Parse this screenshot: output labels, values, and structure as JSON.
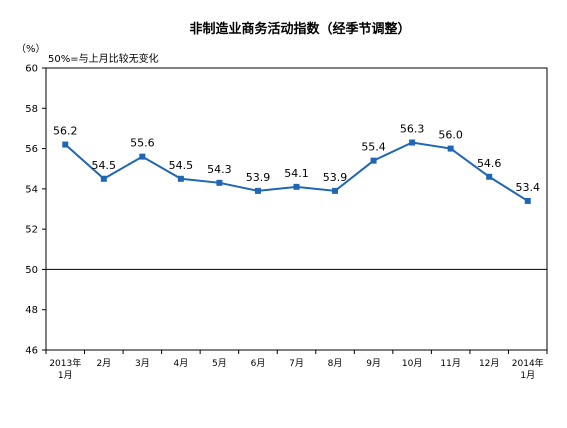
{
  "chart_data": {
    "type": "line",
    "title": "非制造业商务活动指数（经季节调整）",
    "unit": "（%）",
    "annotation": "50%=与上月比较无变化",
    "categories": [
      [
        "2013年",
        "1月"
      ],
      [
        "2月"
      ],
      [
        "3月"
      ],
      [
        "4月"
      ],
      [
        "5月"
      ],
      [
        "6月"
      ],
      [
        "7月"
      ],
      [
        "8月"
      ],
      [
        "9月"
      ],
      [
        "10月"
      ],
      [
        "11月"
      ],
      [
        "12月"
      ],
      [
        "2014年",
        "1月"
      ]
    ],
    "series": [
      {
        "values": [
          56.2,
          54.5,
          55.6,
          54.5,
          54.3,
          53.9,
          54.1,
          53.9,
          55.4,
          56.3,
          56.0,
          54.6,
          53.4
        ],
        "labels": [
          "56.2",
          "54.5",
          "55.6",
          "54.5",
          "54.3",
          "53.9",
          "54.1",
          "53.9",
          "55.4",
          "56.3",
          "56.0",
          "54.6",
          "53.4"
        ],
        "color": "#1f66b5"
      }
    ],
    "ylim": [
      46,
      60
    ],
    "yticks": [
      46,
      48,
      50,
      52,
      54,
      56,
      58,
      60
    ],
    "baseline": 50,
    "grid": false,
    "legend": "none"
  }
}
